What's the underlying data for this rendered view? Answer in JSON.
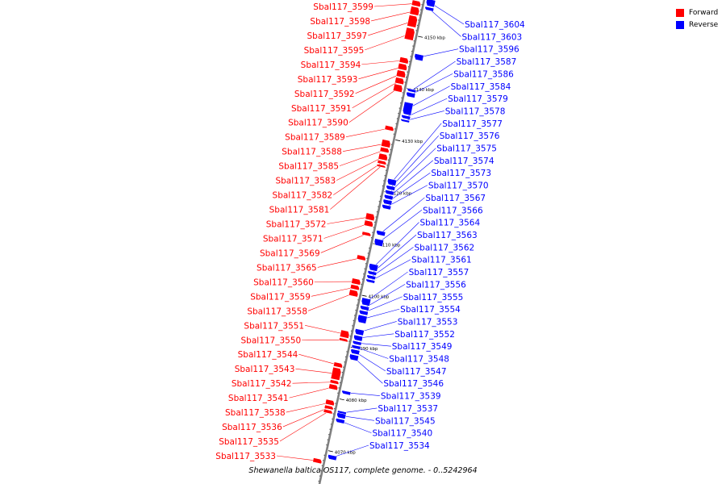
{
  "legend": {
    "forward": {
      "label": "Forward",
      "color": "#ff0000"
    },
    "reverse": {
      "label": "Reverse",
      "color": "#0000ff"
    }
  },
  "caption": "Shewanella baltica OS117, complete genome. - 0..5242964",
  "colors": {
    "forward": "#ff0000",
    "reverse": "#0000ff",
    "axis": "#808080"
  },
  "ruler": {
    "unit": "kbp",
    "ticks": [
      {
        "label": "4070 kbp",
        "pos": 4070
      },
      {
        "label": "4080 kbp",
        "pos": 4080
      },
      {
        "label": "4090 kbp",
        "pos": 4090
      },
      {
        "label": "4100 kbp",
        "pos": 4100
      },
      {
        "label": "4110 kbp",
        "pos": 4110
      },
      {
        "label": "4120 kbp",
        "pos": 4120
      },
      {
        "label": "4130 kbp",
        "pos": 4130
      },
      {
        "label": "4140 kbp",
        "pos": 4140
      },
      {
        "label": "4150 kbp",
        "pos": 4150
      }
    ]
  },
  "forward_genes": [
    {
      "label": "Sbal117_3599",
      "start": 4155.5,
      "end": 4156.5
    },
    {
      "label": "Sbal117_3598",
      "start": 4153.8,
      "end": 4155.3
    },
    {
      "label": "Sbal117_3597",
      "start": 4151.5,
      "end": 4153.6
    },
    {
      "label": "Sbal117_3595",
      "start": 4149.0,
      "end": 4151.2
    },
    {
      "label": "Sbal117_3594",
      "start": 4144.5,
      "end": 4145.5
    },
    {
      "label": "Sbal117_3593",
      "start": 4143.2,
      "end": 4144.3
    },
    {
      "label": "Sbal117_3592",
      "start": 4141.8,
      "end": 4143.0
    },
    {
      "label": "Sbal117_3591",
      "start": 4140.5,
      "end": 4141.6
    },
    {
      "label": "Sbal117_3590",
      "start": 4139.0,
      "end": 4140.3
    },
    {
      "label": "Sbal117_3589",
      "start": 4131.5,
      "end": 4132.3
    },
    {
      "label": "Sbal117_3588",
      "start": 4128.3,
      "end": 4129.6
    },
    {
      "label": "Sbal117_3585",
      "start": 4127.3,
      "end": 4128.1
    },
    {
      "label": "Sbal117_3583",
      "start": 4125.8,
      "end": 4126.9
    },
    {
      "label": "Sbal117_3582",
      "start": 4125.0,
      "end": 4125.6
    },
    {
      "label": "Sbal117_3581",
      "start": 4124.4,
      "end": 4124.8
    },
    {
      "label": "Sbal117_3572",
      "start": 4114.2,
      "end": 4115.4
    },
    {
      "label": "Sbal117_3571",
      "start": 4113.0,
      "end": 4114.0
    },
    {
      "label": "Sbal117_3569",
      "start": 4111.2,
      "end": 4111.8
    },
    {
      "label": "Sbal117_3565",
      "start": 4106.5,
      "end": 4107.3
    },
    {
      "label": "Sbal117_3560",
      "start": 4101.8,
      "end": 4102.8
    },
    {
      "label": "Sbal117_3559",
      "start": 4100.8,
      "end": 4101.6
    },
    {
      "label": "Sbal117_3558",
      "start": 4099.5,
      "end": 4100.6
    },
    {
      "label": "Sbal117_3551",
      "start": 4091.5,
      "end": 4092.8
    },
    {
      "label": "Sbal117_3550",
      "start": 4090.8,
      "end": 4091.3
    },
    {
      "label": "Sbal117_3544",
      "start": 4085.8,
      "end": 4086.6
    },
    {
      "label": "Sbal117_3543",
      "start": 4083.4,
      "end": 4085.6
    },
    {
      "label": "Sbal117_3542",
      "start": 4082.6,
      "end": 4083.2
    },
    {
      "label": "Sbal117_3541",
      "start": 4081.5,
      "end": 4082.4
    },
    {
      "label": "Sbal117_3538",
      "start": 4078.5,
      "end": 4079.4
    },
    {
      "label": "Sbal117_3536",
      "start": 4077.7,
      "end": 4078.3
    },
    {
      "label": "Sbal117_3535",
      "start": 4076.9,
      "end": 4077.5
    },
    {
      "label": "Sbal117_3533",
      "start": 4067.3,
      "end": 4068.1
    }
  ],
  "reverse_genes": [
    {
      "label": "Sbal117_3604",
      "start": 4156.0,
      "end": 4157.3
    },
    {
      "label": "Sbal117_3603",
      "start": 4155.2,
      "end": 4155.8
    },
    {
      "label": "Sbal117_3596",
      "start": 4145.6,
      "end": 4146.7
    },
    {
      "label": "Sbal117_3587",
      "start": 4139.5,
      "end": 4140.0
    },
    {
      "label": "Sbal117_3586",
      "start": 4138.5,
      "end": 4139.3
    },
    {
      "label": "Sbal117_3584",
      "start": 4135.1,
      "end": 4137.4
    },
    {
      "label": "Sbal117_3579",
      "start": 4134.3,
      "end": 4134.9
    },
    {
      "label": "Sbal117_3578",
      "start": 4133.7,
      "end": 4134.1
    },
    {
      "label": "Sbal117_3577",
      "start": 4121.5,
      "end": 4122.6
    },
    {
      "label": "Sbal117_3576",
      "start": 4120.6,
      "end": 4121.3
    },
    {
      "label": "Sbal117_3575",
      "start": 4119.7,
      "end": 4120.4
    },
    {
      "label": "Sbal117_3574",
      "start": 4118.8,
      "end": 4119.5
    },
    {
      "label": "Sbal117_3573",
      "start": 4117.8,
      "end": 4118.6
    },
    {
      "label": "Sbal117_3570",
      "start": 4116.9,
      "end": 4117.6
    },
    {
      "label": "Sbal117_3567",
      "start": 4111.8,
      "end": 4112.6
    },
    {
      "label": "Sbal117_3566",
      "start": 4109.8,
      "end": 4111.0
    },
    {
      "label": "Sbal117_3564",
      "start": 4105.0,
      "end": 4106.2
    },
    {
      "label": "Sbal117_3563",
      "start": 4104.2,
      "end": 4104.8
    },
    {
      "label": "Sbal117_3562",
      "start": 4103.4,
      "end": 4104.0
    },
    {
      "label": "Sbal117_3561",
      "start": 4102.7,
      "end": 4103.2
    },
    {
      "label": "Sbal117_3557",
      "start": 4098.3,
      "end": 4099.6
    },
    {
      "label": "Sbal117_3556",
      "start": 4097.4,
      "end": 4098.1
    },
    {
      "label": "Sbal117_3555",
      "start": 4096.5,
      "end": 4097.2
    },
    {
      "label": "Sbal117_3554",
      "start": 4094.9,
      "end": 4096.3
    },
    {
      "label": "Sbal117_3553",
      "start": 4092.6,
      "end": 4093.6
    },
    {
      "label": "Sbal117_3552",
      "start": 4091.5,
      "end": 4092.4
    },
    {
      "label": "Sbal117_3549",
      "start": 4090.7,
      "end": 4091.3
    },
    {
      "label": "Sbal117_3548",
      "start": 4089.9,
      "end": 4090.5
    },
    {
      "label": "Sbal117_3547",
      "start": 4088.9,
      "end": 4089.7
    },
    {
      "label": "Sbal117_3546",
      "start": 4087.7,
      "end": 4088.7
    },
    {
      "label": "Sbal117_3539",
      "start": 4081.1,
      "end": 4081.7
    },
    {
      "label": "Sbal117_3537",
      "start": 4077.2,
      "end": 4077.8
    },
    {
      "label": "Sbal117_3545",
      "start": 4076.5,
      "end": 4077.4
    },
    {
      "label": "Sbal117_3540",
      "start": 4075.6,
      "end": 4076.3
    },
    {
      "label": "Sbal117_3534",
      "start": 4068.5,
      "end": 4069.3
    }
  ]
}
